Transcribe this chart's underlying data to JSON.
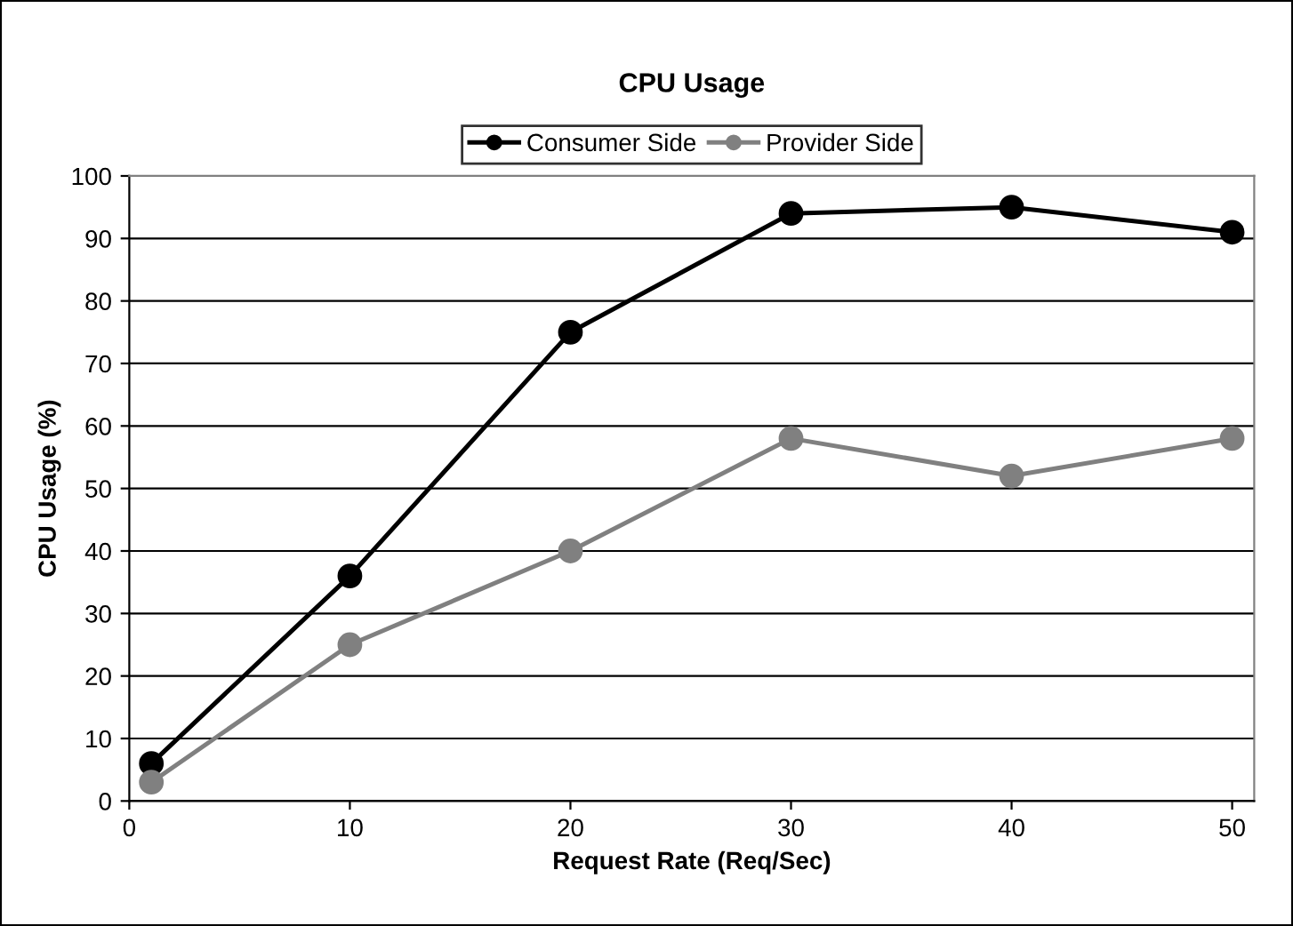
{
  "chart_data": {
    "type": "line",
    "title": "CPU Usage",
    "xlabel": "Request Rate (Req/Sec)",
    "ylabel": "CPU Usage (%)",
    "x": [
      1,
      10,
      20,
      30,
      40,
      50
    ],
    "series": [
      {
        "name": "Consumer Side",
        "color": "#000000",
        "values": [
          6,
          36,
          75,
          94,
          95,
          91
        ]
      },
      {
        "name": "Provider Side",
        "color": "#808080",
        "values": [
          3,
          25,
          40,
          58,
          52,
          58
        ]
      }
    ],
    "xlim": [
      0,
      51
    ],
    "xticks": [
      0,
      10,
      20,
      30,
      40,
      50
    ],
    "ylim": [
      0,
      100
    ],
    "yticks": [
      0,
      10,
      20,
      30,
      40,
      50,
      60,
      70,
      80,
      90,
      100
    ],
    "grid": "y",
    "legend": "top",
    "marker": "circle"
  }
}
